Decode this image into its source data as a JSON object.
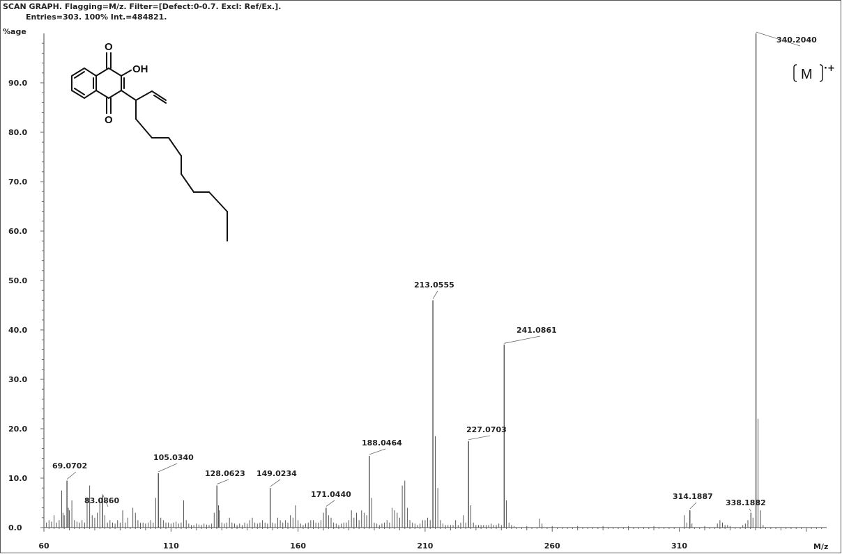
{
  "header": {
    "line1": "SCAN GRAPH. Flagging=M/z. Filter=[Defect:0-0.7. Excl: Ref/Ex.].",
    "line2": "Entries=303. 100% Int.=484821."
  },
  "ion_label": {
    "text": "M",
    "charge": "·+"
  },
  "molecule": {
    "atom_labels": [
      "O",
      "OH",
      "O"
    ]
  },
  "chart_data": {
    "type": "bar",
    "xlabel": "M/z",
    "ylabel": "%age",
    "xlim": [
      60,
      368
    ],
    "ylim": [
      0,
      100
    ],
    "x_ticks": [
      "60",
      "110",
      "160",
      "210",
      "260",
      "310"
    ],
    "y_ticks": [
      "0.0",
      "10.0",
      "20.0",
      "30.0",
      "40.0",
      "50.0",
      "60.0",
      "70.0",
      "80.0",
      "90.0"
    ],
    "labeled_peaks": [
      {
        "label": "69.0702",
        "x": 69.07,
        "y": 9.5
      },
      {
        "label": "83.0860",
        "x": 83.09,
        "y": 6.5
      },
      {
        "label": "105.0340",
        "x": 105.03,
        "y": 11.0
      },
      {
        "label": "128.0623",
        "x": 128.06,
        "y": 8.5
      },
      {
        "label": "149.0234",
        "x": 149.02,
        "y": 8.0
      },
      {
        "label": "171.0440",
        "x": 171.04,
        "y": 4.0
      },
      {
        "label": "188.0464",
        "x": 188.05,
        "y": 14.5
      },
      {
        "label": "213.0555",
        "x": 213.06,
        "y": 46.0
      },
      {
        "label": "227.0703",
        "x": 227.07,
        "y": 17.5
      },
      {
        "label": "241.0861",
        "x": 241.09,
        "y": 37.0
      },
      {
        "label": "314.1887",
        "x": 314.19,
        "y": 3.5
      },
      {
        "label": "338.1882",
        "x": 338.19,
        "y": 3.0
      },
      {
        "label": "340.2040",
        "x": 340.2,
        "y": 100.0
      }
    ],
    "other_peaks": [
      [
        61,
        1.0
      ],
      [
        62,
        1.5
      ],
      [
        63,
        1.2
      ],
      [
        64,
        2.5
      ],
      [
        65,
        1.0
      ],
      [
        66,
        1.5
      ],
      [
        67,
        7.5
      ],
      [
        67.5,
        3.0
      ],
      [
        68,
        2.5
      ],
      [
        69.6,
        4.0
      ],
      [
        70,
        3.5
      ],
      [
        71,
        5.5
      ],
      [
        72,
        1.5
      ],
      [
        73,
        1.2
      ],
      [
        74,
        1.0
      ],
      [
        75,
        1.5
      ],
      [
        76,
        1.0
      ],
      [
        77,
        6.0
      ],
      [
        78,
        8.5
      ],
      [
        79,
        2.5
      ],
      [
        80,
        2.0
      ],
      [
        81,
        3.0
      ],
      [
        82,
        5.5
      ],
      [
        84,
        2.5
      ],
      [
        85,
        1.0
      ],
      [
        86,
        1.5
      ],
      [
        87,
        1.0
      ],
      [
        88,
        0.8
      ],
      [
        89,
        1.5
      ],
      [
        90,
        1.0
      ],
      [
        91,
        3.5
      ],
      [
        92,
        1.0
      ],
      [
        93,
        2.0
      ],
      [
        95,
        4.0
      ],
      [
        96,
        3.0
      ],
      [
        97,
        1.5
      ],
      [
        98,
        1.0
      ],
      [
        99,
        1.0
      ],
      [
        100,
        0.8
      ],
      [
        101,
        1.0
      ],
      [
        102,
        1.5
      ],
      [
        103,
        1.0
      ],
      [
        104,
        6.0
      ],
      [
        106,
        2.0
      ],
      [
        107,
        1.5
      ],
      [
        108,
        1.0
      ],
      [
        109,
        1.0
      ],
      [
        110,
        0.8
      ],
      [
        111,
        1.0
      ],
      [
        112,
        1.2
      ],
      [
        113,
        0.8
      ],
      [
        114,
        1.0
      ],
      [
        115,
        5.5
      ],
      [
        116,
        1.5
      ],
      [
        117,
        0.8
      ],
      [
        118,
        0.5
      ],
      [
        119,
        0.5
      ],
      [
        120,
        0.8
      ],
      [
        121,
        0.6
      ],
      [
        122,
        0.5
      ],
      [
        123,
        0.8
      ],
      [
        124,
        0.6
      ],
      [
        125,
        0.5
      ],
      [
        126,
        0.8
      ],
      [
        127,
        3.0
      ],
      [
        128.7,
        4.5
      ],
      [
        129,
        3.5
      ],
      [
        130,
        1.0
      ],
      [
        131,
        0.8
      ],
      [
        132,
        1.0
      ],
      [
        133,
        2.0
      ],
      [
        134,
        1.0
      ],
      [
        135,
        0.8
      ],
      [
        136,
        0.5
      ],
      [
        137,
        0.8
      ],
      [
        138,
        0.5
      ],
      [
        139,
        1.0
      ],
      [
        140,
        0.8
      ],
      [
        141,
        1.5
      ],
      [
        142,
        2.0
      ],
      [
        143,
        1.0
      ],
      [
        144,
        0.8
      ],
      [
        145,
        1.0
      ],
      [
        146,
        1.5
      ],
      [
        147,
        1.0
      ],
      [
        148,
        0.8
      ],
      [
        150,
        1.0
      ],
      [
        151,
        0.8
      ],
      [
        152,
        2.0
      ],
      [
        153,
        1.5
      ],
      [
        154,
        1.0
      ],
      [
        155,
        1.5
      ],
      [
        156,
        1.0
      ],
      [
        157,
        2.5
      ],
      [
        158,
        2.0
      ],
      [
        159,
        4.5
      ],
      [
        160,
        1.5
      ],
      [
        161,
        0.8
      ],
      [
        162,
        0.5
      ],
      [
        163,
        0.8
      ],
      [
        164,
        1.0
      ],
      [
        165,
        1.5
      ],
      [
        166,
        1.5
      ],
      [
        167,
        1.0
      ],
      [
        168,
        1.0
      ],
      [
        169,
        1.5
      ],
      [
        170,
        3.0
      ],
      [
        172,
        2.5
      ],
      [
        173,
        2.0
      ],
      [
        174,
        1.0
      ],
      [
        175,
        0.8
      ],
      [
        176,
        0.5
      ],
      [
        177,
        0.8
      ],
      [
        178,
        1.0
      ],
      [
        179,
        1.0
      ],
      [
        180,
        1.5
      ],
      [
        181,
        3.5
      ],
      [
        182,
        2.0
      ],
      [
        183,
        3.0
      ],
      [
        184,
        1.5
      ],
      [
        185,
        3.5
      ],
      [
        186,
        3.0
      ],
      [
        187,
        2.5
      ],
      [
        189,
        6.0
      ],
      [
        190,
        1.0
      ],
      [
        191,
        0.8
      ],
      [
        192,
        0.5
      ],
      [
        193,
        0.8
      ],
      [
        194,
        1.0
      ],
      [
        195,
        1.5
      ],
      [
        196,
        1.0
      ],
      [
        197,
        4.0
      ],
      [
        198,
        3.5
      ],
      [
        199,
        3.0
      ],
      [
        200,
        2.0
      ],
      [
        201,
        8.5
      ],
      [
        202,
        9.5
      ],
      [
        203,
        4.0
      ],
      [
        204,
        1.5
      ],
      [
        205,
        1.0
      ],
      [
        206,
        0.8
      ],
      [
        207,
        0.5
      ],
      [
        208,
        0.8
      ],
      [
        209,
        1.5
      ],
      [
        210,
        1.5
      ],
      [
        211,
        2.0
      ],
      [
        212,
        1.5
      ],
      [
        214,
        18.5
      ],
      [
        215,
        8.0
      ],
      [
        216,
        1.5
      ],
      [
        217,
        0.8
      ],
      [
        218,
        0.5
      ],
      [
        219,
        0.5
      ],
      [
        220,
        0.5
      ],
      [
        221,
        0.5
      ],
      [
        222,
        1.5
      ],
      [
        223,
        0.5
      ],
      [
        224,
        1.0
      ],
      [
        225,
        2.5
      ],
      [
        226,
        1.0
      ],
      [
        228,
        4.5
      ],
      [
        229,
        1.0
      ],
      [
        230,
        0.5
      ],
      [
        231,
        0.5
      ],
      [
        232,
        0.5
      ],
      [
        233,
        0.5
      ],
      [
        234,
        0.5
      ],
      [
        235,
        0.5
      ],
      [
        236,
        0.8
      ],
      [
        237,
        0.5
      ],
      [
        238,
        0.5
      ],
      [
        239,
        0.8
      ],
      [
        240,
        0.5
      ],
      [
        242,
        5.5
      ],
      [
        243,
        1.0
      ],
      [
        244,
        0.5
      ],
      [
        245,
        0.3
      ],
      [
        250,
        0.3
      ],
      [
        255,
        1.8
      ],
      [
        256,
        0.8
      ],
      [
        260,
        0.3
      ],
      [
        270,
        0.3
      ],
      [
        280,
        0.3
      ],
      [
        290,
        0.3
      ],
      [
        300,
        0.3
      ],
      [
        312,
        2.5
      ],
      [
        313,
        1.0
      ],
      [
        315,
        0.8
      ],
      [
        320,
        0.3
      ],
      [
        325,
        0.8
      ],
      [
        326,
        1.5
      ],
      [
        327,
        1.0
      ],
      [
        328,
        0.5
      ],
      [
        329,
        0.5
      ],
      [
        330,
        0.3
      ],
      [
        335,
        0.5
      ],
      [
        336,
        0.8
      ],
      [
        337,
        1.5
      ],
      [
        339,
        2.0
      ],
      [
        341,
        22.0
      ],
      [
        342,
        3.5
      ],
      [
        343,
        0.5
      ]
    ]
  }
}
